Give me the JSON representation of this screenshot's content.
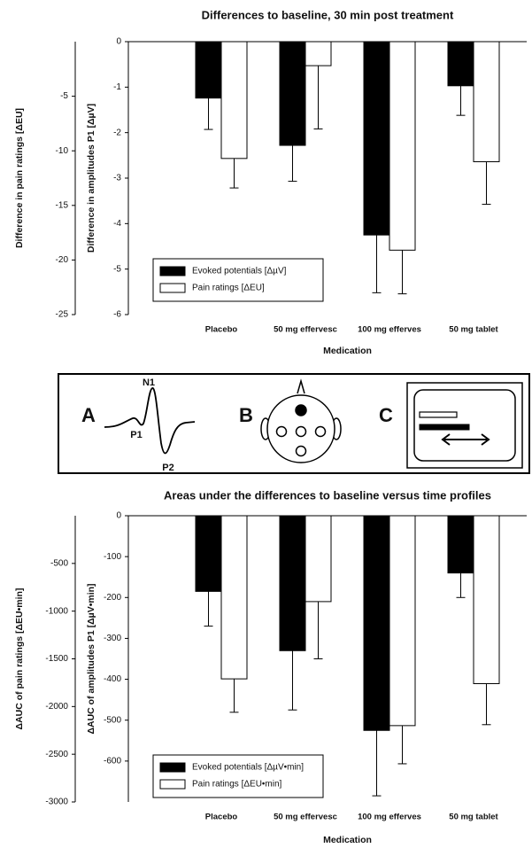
{
  "chart_data": [
    {
      "type": "bar",
      "title": "Differences to baseline, 30 min post treatment",
      "x_label": "Medication",
      "y_label": "Difference in amplitudes P1 [ΔµV]",
      "y2_label": "Difference in pain ratings [ΔEU]",
      "categories": [
        "Placebo",
        "50 mg effervesc",
        "100 mg efferves",
        "50 mg tablet"
      ],
      "series": [
        {
          "name": "Evoked potentials [ΔµV]",
          "color": "#000000",
          "values": [
            -1.24,
            -2.28,
            -4.25,
            -0.97
          ],
          "errors": [
            0.69,
            0.79,
            1.27,
            0.65
          ]
        },
        {
          "name": "Pain ratings [ΔEU]",
          "color": "#ffffff",
          "axis": "y2",
          "values": [
            -10.7,
            -2.2,
            -19.1,
            -11.0
          ],
          "errors": [
            2.7,
            5.8,
            4.0,
            3.9
          ]
        }
      ],
      "ylim": [
        0,
        -6
      ],
      "yticks": [
        0,
        -1,
        -2,
        -3,
        -4,
        -5,
        -6
      ],
      "y2lim": [
        0,
        -25
      ],
      "y2ticks": [
        -5,
        -10,
        -15,
        -20,
        -25
      ]
    },
    {
      "type": "bar",
      "title": "Areas under the differences to baseline versus time profiles",
      "x_label": "Medication",
      "y_label": "ΔAUC of amplitudes P1 [ΔµV•min]",
      "y2_label": "ΔAUC of pain ratings [ΔEU•min]",
      "categories": [
        "Placebo",
        "50 mg effervesc",
        "100 mg efferves",
        "50 mg tablet"
      ],
      "series": [
        {
          "name": "Evoked potentials [ΔµV•min]",
          "color": "#000000",
          "values": [
            -185,
            -330,
            -525,
            -140
          ],
          "errors": [
            85,
            145,
            160,
            60
          ]
        },
        {
          "name": "Pain ratings [ΔEU•min]",
          "color": "#ffffff",
          "axis": "y2",
          "values": [
            -1710,
            -900,
            -2200,
            -1760
          ],
          "errors": [
            350,
            600,
            400,
            430
          ]
        }
      ],
      "ylim": [
        0,
        -700
      ],
      "yticks": [
        0,
        -100,
        -200,
        -300,
        -400,
        -500,
        -600
      ],
      "y2lim": [
        0,
        -3000
      ],
      "y2ticks": [
        -500,
        -1000,
        -1500,
        -2000,
        -2500,
        -3000
      ]
    }
  ],
  "panel": {
    "labels": [
      "A",
      "B",
      "C"
    ],
    "waveform_labels": [
      "N1",
      "P1",
      "P2"
    ]
  }
}
